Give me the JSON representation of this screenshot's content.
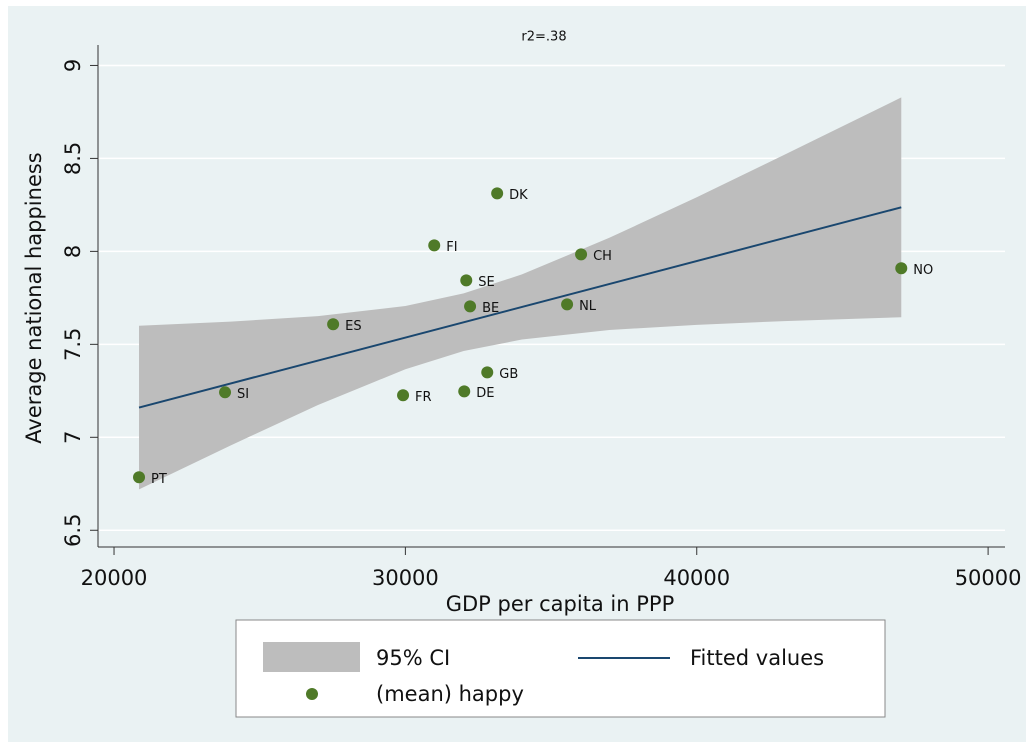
{
  "chart_data": {
    "type": "scatter",
    "title": "r2=.38",
    "x_label": "GDP per capita in PPP",
    "y_label": "Average national happiness",
    "xlim": [
      19450,
      50580
    ],
    "xticks": [
      20000,
      30000,
      40000,
      50000
    ],
    "ylim": [
      6.41,
      9.11
    ],
    "yticks": [
      {
        "value": 6.5,
        "label": "6.5"
      },
      {
        "value": 7,
        "label": "7"
      },
      {
        "value": 7.5,
        "label": "7.5"
      },
      {
        "value": 8,
        "label": "8"
      },
      {
        "value": 8.5,
        "label": "8.5"
      },
      {
        "value": 9,
        "label": "9"
      }
    ],
    "grid": true,
    "legend": "bottom",
    "series": [
      {
        "name": "95% CI",
        "type": "band",
        "color": "#bdbdbd",
        "x": [
          20858,
          24000,
          27000,
          30000,
          32000,
          34000,
          37000,
          40000,
          43000,
          47020
        ],
        "lower": [
          6.72,
          6.956,
          7.174,
          7.366,
          7.464,
          7.526,
          7.577,
          7.605,
          7.625,
          7.646
        ],
        "upper": [
          7.6,
          7.622,
          7.652,
          7.706,
          7.774,
          7.876,
          8.073,
          8.291,
          8.519,
          8.828
        ]
      },
      {
        "name": "Fitted values",
        "type": "line",
        "color": "#1a476f",
        "x": [
          20858,
          47020
        ],
        "values": [
          7.16,
          8.237
        ]
      },
      {
        "name": "(mean) happy",
        "type": "points",
        "color": "#4f7a28",
        "labels": [
          "PT",
          "SI",
          "ES",
          "FR",
          "FI",
          "SE",
          "BE",
          "DE",
          "GB",
          "DK",
          "NL",
          "CH",
          "NO"
        ],
        "x": [
          20858,
          23810,
          27520,
          29920,
          30990,
          32090,
          32220,
          32020,
          32810,
          33150,
          35550,
          36030,
          47020
        ],
        "values": [
          6.785,
          7.242,
          7.608,
          7.226,
          8.032,
          7.844,
          7.704,
          7.247,
          7.349,
          8.312,
          7.715,
          7.984,
          7.909
        ]
      }
    ]
  }
}
